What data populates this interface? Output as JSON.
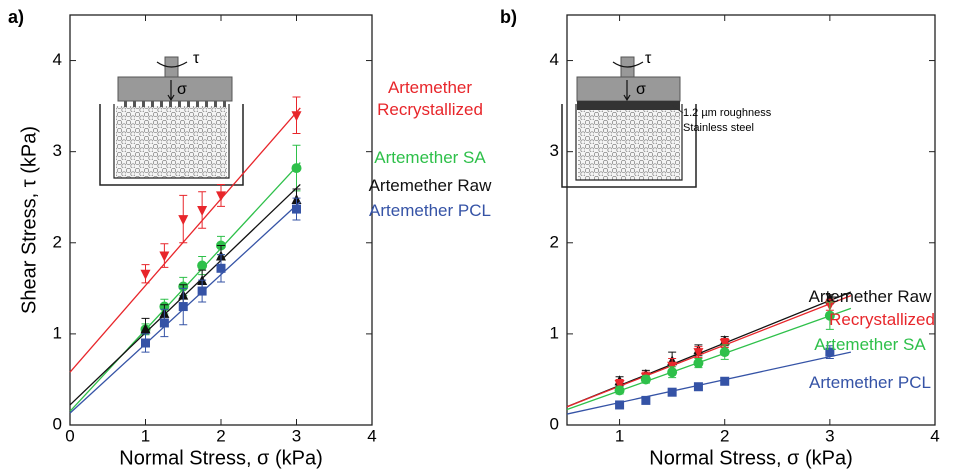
{
  "chart_data": [
    {
      "type": "scatter",
      "panel_label": "a)",
      "xlabel": "Normal Stress, σ (kPa)",
      "ylabel": "Shear Stress, τ (kPa)",
      "xlim": [
        0,
        4
      ],
      "ylim": [
        0,
        4.5
      ],
      "xticks": [
        0,
        1,
        2,
        3,
        4
      ],
      "yticks": [
        0,
        1,
        2,
        3,
        4
      ],
      "x": [
        1,
        1.25,
        1.5,
        1.75,
        2,
        3
      ],
      "inset_labels": [
        "τ",
        "σ"
      ],
      "series": [
        {
          "name": "Artemether Recrystallized",
          "color": "#e8262b",
          "marker": "triangle-down",
          "values": [
            1.66,
            1.86,
            2.26,
            2.36,
            2.52,
            3.4
          ],
          "errors": [
            0.1,
            0.13,
            0.26,
            0.2,
            0.12,
            0.2
          ],
          "fit": {
            "x": [
              0,
              3.05
            ],
            "y": [
              0.58,
              3.48
            ]
          }
        },
        {
          "name": "Artemether SA",
          "color": "#2ec04a",
          "marker": "circle",
          "values": [
            1.05,
            1.3,
            1.52,
            1.75,
            1.97,
            2.82
          ],
          "errors": [
            0.06,
            0.08,
            0.1,
            0.1,
            0.1,
            0.25
          ],
          "fit": {
            "x": [
              0,
              3.05
            ],
            "y": [
              0.15,
              2.88
            ]
          }
        },
        {
          "name": "Artemether Raw",
          "color": "#111111",
          "marker": "triangle-up",
          "values": [
            1.05,
            1.22,
            1.42,
            1.58,
            1.85,
            2.47
          ],
          "errors": [
            0.12,
            0.1,
            0.12,
            0.12,
            0.12,
            0.12
          ],
          "fit": {
            "x": [
              0,
              3.05
            ],
            "y": [
              0.22,
              2.64
            ]
          }
        },
        {
          "name": "Artemether PCL",
          "color": "#3553a6",
          "marker": "square",
          "values": [
            0.9,
            1.12,
            1.3,
            1.47,
            1.72,
            2.37
          ],
          "errors": [
            0.1,
            0.15,
            0.2,
            0.12,
            0.15,
            0.12
          ],
          "fit": {
            "x": [
              0,
              3.05
            ],
            "y": [
              0.13,
              2.45
            ]
          }
        }
      ]
    },
    {
      "type": "scatter",
      "panel_label": "b)",
      "xlabel": "Normal Stress, σ (kPa)",
      "xlim": [
        0.5,
        4
      ],
      "ylim": [
        0,
        4.5
      ],
      "xticks": [
        1,
        2,
        3,
        4
      ],
      "yticks": [
        0,
        1,
        2,
        3,
        4
      ],
      "x": [
        1,
        1.25,
        1.5,
        1.75,
        2,
        3
      ],
      "inset_labels": [
        "τ",
        "σ",
        "1.2 µm roughness",
        "Stainless steel"
      ],
      "series": [
        {
          "name": "Artemether Raw",
          "color": "#111111",
          "marker": "triangle-up",
          "values": [
            0.48,
            0.55,
            0.7,
            0.82,
            0.92,
            1.38
          ],
          "errors": [
            0.05,
            0.05,
            0.1,
            0.06,
            0.05,
            0.05
          ],
          "fit": {
            "x": [
              0.5,
              3.2
            ],
            "y": [
              0.2,
              1.46
            ]
          }
        },
        {
          "name": "Recrystallized",
          "color": "#e8262b",
          "marker": "triangle-down",
          "values": [
            0.45,
            0.53,
            0.65,
            0.8,
            0.9,
            1.32
          ],
          "errors": [
            0.05,
            0.05,
            0.08,
            0.06,
            0.05,
            0.06
          ],
          "fit": {
            "x": [
              0.5,
              3.2
            ],
            "y": [
              0.2,
              1.42
            ]
          }
        },
        {
          "name": "Artemether SA",
          "color": "#2ec04a",
          "marker": "circle",
          "values": [
            0.38,
            0.5,
            0.58,
            0.68,
            0.8,
            1.2
          ],
          "errors": [
            0.04,
            0.04,
            0.06,
            0.05,
            0.08,
            0.15
          ],
          "fit": {
            "x": [
              0.5,
              3.2
            ],
            "y": [
              0.17,
              1.28
            ]
          }
        },
        {
          "name": "Artemether PCL",
          "color": "#3553a6",
          "marker": "square",
          "values": [
            0.22,
            0.27,
            0.36,
            0.42,
            0.48,
            0.8
          ],
          "errors": [
            0.02,
            0.02,
            0.03,
            0.03,
            0.03,
            0.07
          ],
          "fit": {
            "x": [
              0.5,
              3.2
            ],
            "y": [
              0.12,
              0.8
            ]
          }
        }
      ]
    }
  ]
}
